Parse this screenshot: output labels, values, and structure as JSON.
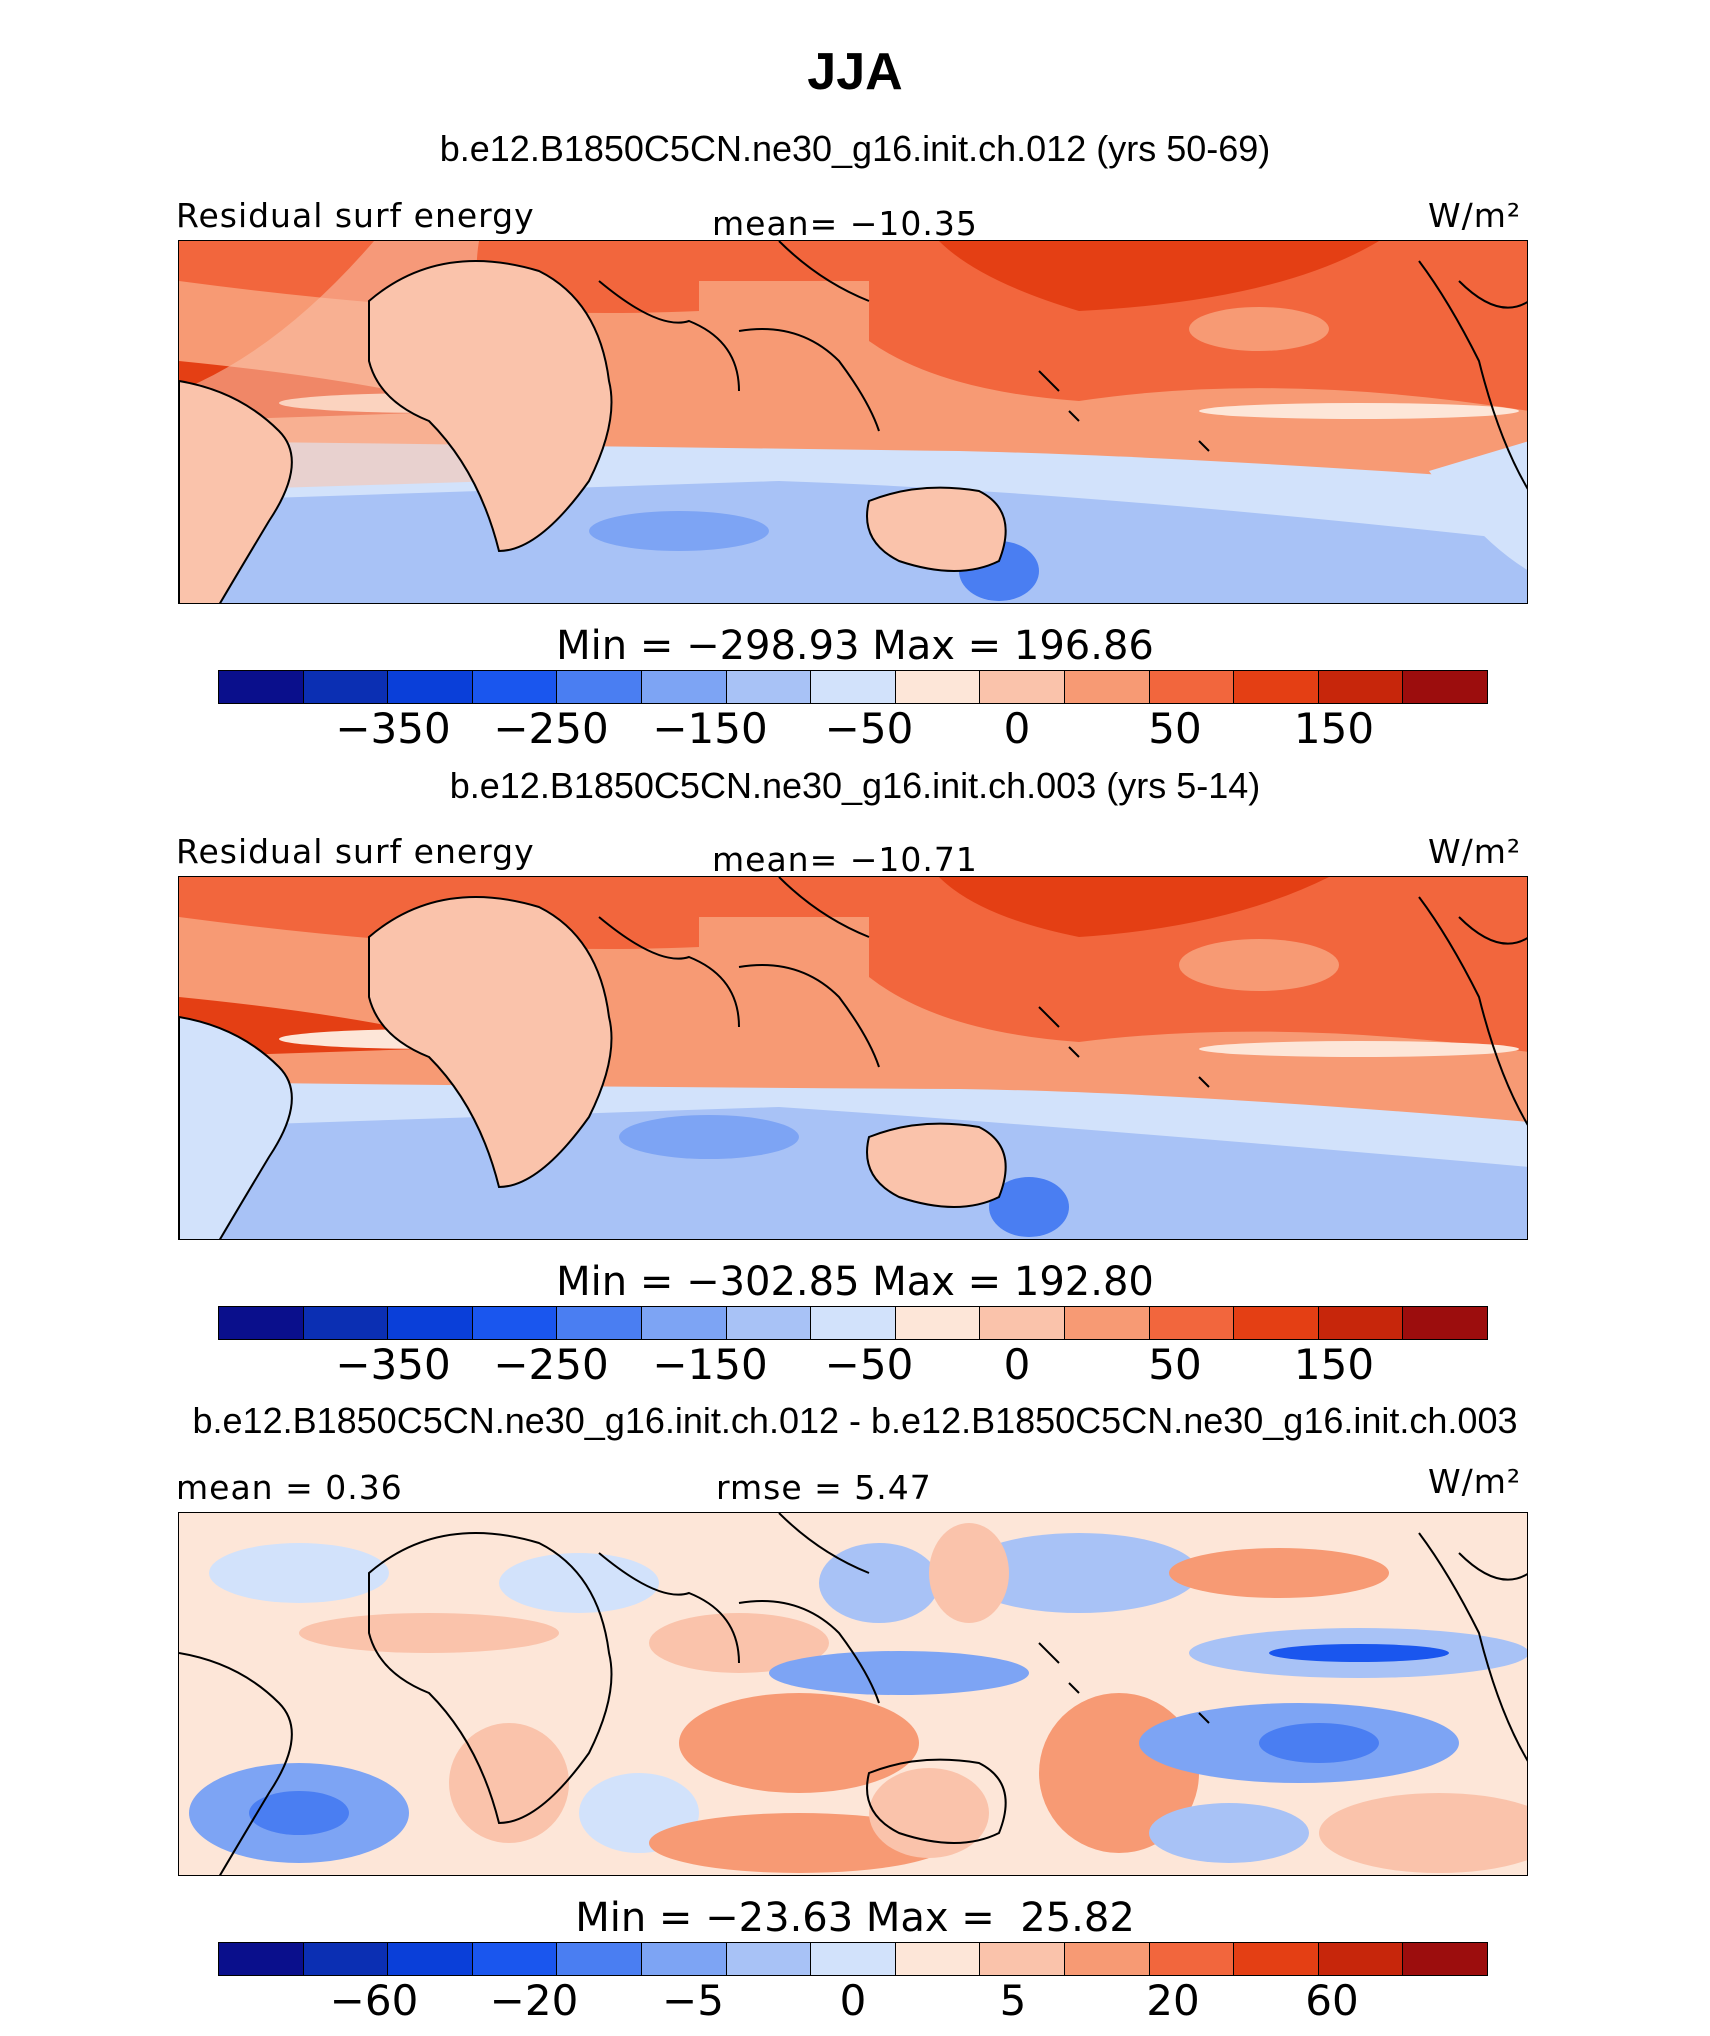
{
  "title": "JJA",
  "palette": [
    "#0a0f8c",
    "#0b2fb3",
    "#0a3fd9",
    "#1a56ee",
    "#4a7ef2",
    "#7da4f4",
    "#a8c2f6",
    "#d2e2fb",
    "#fde6d8",
    "#fac3ab",
    "#f79a74",
    "#f2663d",
    "#e43f14",
    "#c7260b",
    "#9c0d0d"
  ],
  "panels": [
    {
      "case_title": "b.e12.B1850C5CN.ne30_g16.init.ch.012 (yrs 50-69)",
      "left_label": "Residual surf energy",
      "center_label": "mean= −10.35",
      "units": "W/m²",
      "min_max": "Min = −298.93 Max = 196.86",
      "tick_labels": [
        "−350",
        "−250",
        "−150",
        "−50",
        "0",
        "50",
        "150"
      ]
    },
    {
      "case_title": "b.e12.B1850C5CN.ne30_g16.init.ch.003 (yrs 5-14)",
      "left_label": "Residual surf energy",
      "center_label": "mean= −10.71",
      "units": "W/m²",
      "min_max": "Min = −302.85 Max = 192.80",
      "tick_labels": [
        "−350",
        "−250",
        "−150",
        "−50",
        "0",
        "50",
        "150"
      ]
    },
    {
      "case_title": "b.e12.B1850C5CN.ne30_g16.init.ch.012 - b.e12.B1850C5CN.ne30_g16.init.ch.003",
      "left_label": "mean =   0.36",
      "center_label": "rmse =   5.47",
      "units": "W/m²",
      "min_max": "Min = −23.63 Max =  25.82",
      "tick_labels": [
        "−60",
        "−20",
        "−5",
        "0",
        "5",
        "20",
        "60"
      ]
    }
  ]
}
